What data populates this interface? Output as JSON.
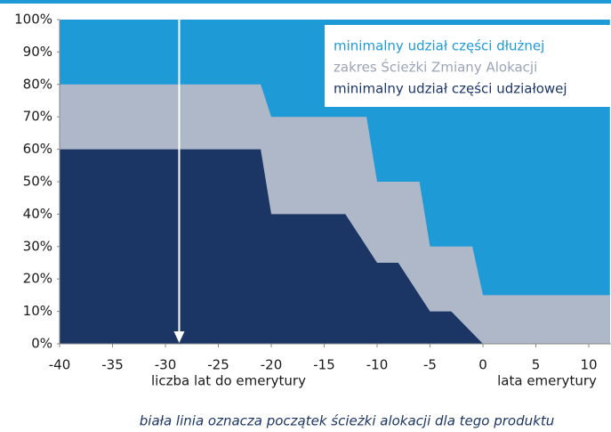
{
  "chart_data": {
    "type": "area",
    "series": [
      {
        "name": "minimalny udział części dłużnej",
        "color": "#1e9ad6",
        "x": [
          -40,
          12
        ],
        "values": [
          100,
          100
        ]
      },
      {
        "name": "zakres Ścieżki Zmiany Alokacji",
        "color": "#aeb8c9",
        "x": [
          -40,
          -21,
          -20,
          -11,
          -10,
          -6,
          -5,
          -1,
          0,
          12
        ],
        "values": [
          80,
          80,
          70,
          70,
          50,
          50,
          30,
          30,
          15,
          15
        ]
      },
      {
        "name": "minimalny udział części udziałowej",
        "color": "#1b3564",
        "x": [
          -40,
          -21,
          -20,
          -13,
          -10,
          -8,
          -5,
          -3,
          0,
          12
        ],
        "values": [
          60,
          60,
          40,
          40,
          25,
          25,
          10,
          10,
          0,
          0
        ]
      }
    ],
    "xlim": [
      -40,
      12.1
    ],
    "ylim": [
      0,
      100
    ],
    "xticks": [
      -40,
      -35,
      -30,
      -25,
      -20,
      -15,
      -10,
      -5,
      0,
      5,
      10
    ],
    "yticks": [
      {
        "value": 0,
        "label": "0%"
      },
      {
        "value": 10,
        "label": "10%"
      },
      {
        "value": 20,
        "label": "20%"
      },
      {
        "value": 30,
        "label": "30%"
      },
      {
        "value": 40,
        "label": "40%"
      },
      {
        "value": 50,
        "label": "50%"
      },
      {
        "value": 60,
        "label": "60%"
      },
      {
        "value": 70,
        "label": "70%"
      },
      {
        "value": 80,
        "label": "80%"
      },
      {
        "value": 90,
        "label": "90%"
      },
      {
        "value": 100,
        "label": "100%"
      }
    ],
    "marker_x": -28.7,
    "xlabel_left": "liczba lat do emerytury",
    "xlabel_right": "lata emerytury",
    "note": "biała linia oznacza początek ścieżki alokacji dla tego produktu"
  }
}
